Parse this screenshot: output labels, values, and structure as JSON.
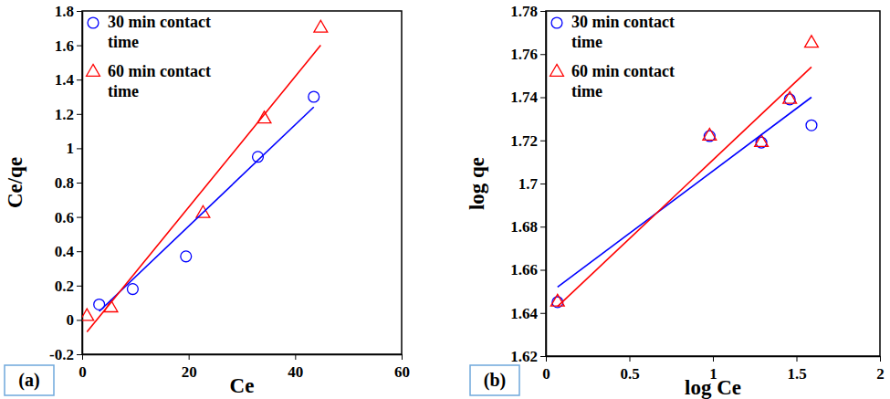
{
  "chart_data": [
    {
      "type": "scatter",
      "x_label": "Ce",
      "y_label": "Ce/qe",
      "annotations": [
        "(a)"
      ],
      "xlim": [
        0,
        60
      ],
      "xticks": [
        0,
        20,
        40,
        60
      ],
      "ylim": [
        -0.2,
        1.8
      ],
      "yticks": [
        -0.2,
        0,
        0.2,
        0.4,
        0.6,
        0.8,
        1,
        1.2,
        1.4,
        1.6,
        1.8
      ],
      "grid": false,
      "legend": "top-left",
      "series": [
        {
          "name": "30 min contact time",
          "color": "#0000ff",
          "marker": "circle",
          "x": [
            3.2,
            9.5,
            19.5,
            33,
            43.5
          ],
          "values": [
            0.09,
            0.18,
            0.37,
            0.95,
            1.3
          ]
        },
        {
          "name": "60 min contact time",
          "color": "#ff0000",
          "marker": "triangle",
          "x": [
            0.9,
            5.4,
            22.7,
            34.2,
            44.8
          ],
          "values": [
            0.02,
            0.07,
            0.62,
            1.17,
            1.7
          ]
        },
        {
          "type": "line",
          "color": "#0000ff",
          "line_style": "solid",
          "x": [
            3.2,
            43.5
          ],
          "values": [
            0.05,
            1.24
          ]
        },
        {
          "type": "line",
          "color": "#ff0000",
          "line_style": "solid",
          "x": [
            0.9,
            44.8
          ],
          "values": [
            -0.07,
            1.6
          ]
        }
      ]
    },
    {
      "type": "scatter",
      "x_label": "log Ce",
      "y_label": "log qe",
      "annotations": [
        "(b)"
      ],
      "xlim": [
        0,
        2
      ],
      "xticks": [
        0,
        0.5,
        1,
        1.5,
        2
      ],
      "ylim": [
        1.62,
        1.78
      ],
      "yticks": [
        1.62,
        1.64,
        1.66,
        1.68,
        1.7,
        1.72,
        1.74,
        1.76,
        1.78
      ],
      "grid": false,
      "legend": "top-left",
      "series": [
        {
          "name": "30 min contact time",
          "color": "#0000ff",
          "marker": "circle",
          "x": [
            0.07,
            0.98,
            1.29,
            1.46,
            1.59
          ],
          "values": [
            1.645,
            1.722,
            1.719,
            1.739,
            1.727
          ]
        },
        {
          "name": "60 min contact time",
          "color": "#ff0000",
          "marker": "triangle",
          "x": [
            0.07,
            0.98,
            1.29,
            1.46,
            1.59
          ],
          "values": [
            1.645,
            1.722,
            1.719,
            1.739,
            1.765
          ]
        },
        {
          "type": "line",
          "color": "#0000ff",
          "line_style": "solid",
          "x": [
            0.07,
            1.59
          ],
          "values": [
            1.652,
            1.74
          ]
        },
        {
          "type": "line",
          "color": "#ff0000",
          "line_style": "solid",
          "x": [
            0.07,
            1.59
          ],
          "values": [
            1.643,
            1.754
          ]
        }
      ]
    }
  ]
}
